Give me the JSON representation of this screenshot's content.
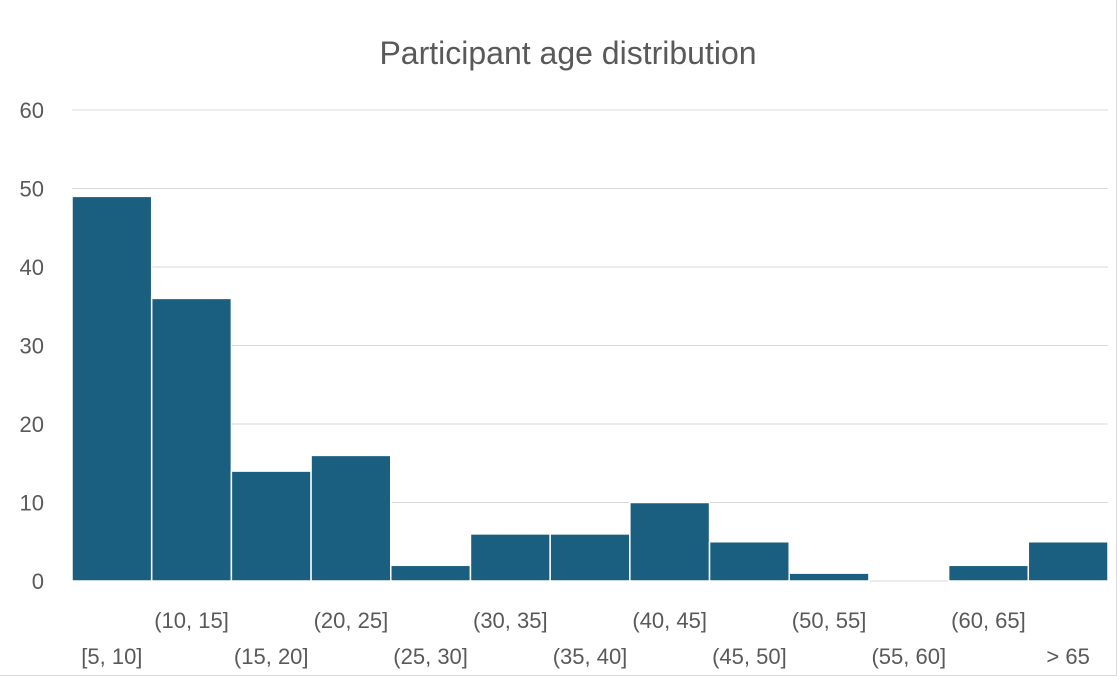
{
  "chart_data": {
    "type": "bar",
    "title": "Participant age distribution",
    "xlabel": "",
    "ylabel": "",
    "categories": [
      "[5, 10]",
      "(10, 15]",
      "(15, 20]",
      "(20, 25]",
      "(25, 30]",
      "(30, 35]",
      "(35, 40]",
      "(40, 45]",
      "(45, 50]",
      "(50, 55]",
      "(55, 60]",
      "(60, 65]",
      "> 65"
    ],
    "values": [
      49,
      36,
      14,
      16,
      2,
      6,
      6,
      10,
      5,
      1,
      0,
      2,
      5
    ],
    "ylim": [
      0,
      60
    ],
    "yticks": [
      0,
      10,
      20,
      30,
      40,
      50,
      60
    ],
    "grid": true,
    "legend": "none",
    "colors": {
      "bar": "#1a5f80",
      "grid": "#d9d9d9",
      "text": "#595959"
    }
  }
}
